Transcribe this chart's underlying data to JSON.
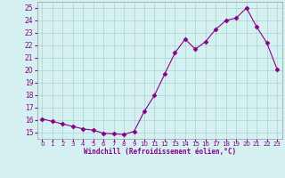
{
  "x": [
    0,
    1,
    2,
    3,
    4,
    5,
    6,
    7,
    8,
    9,
    10,
    11,
    12,
    13,
    14,
    15,
    16,
    17,
    18,
    19,
    20,
    21,
    22,
    23
  ],
  "y": [
    16.1,
    15.9,
    15.7,
    15.5,
    15.3,
    15.2,
    14.95,
    14.9,
    14.85,
    15.1,
    16.7,
    18.0,
    19.7,
    21.4,
    22.5,
    21.7,
    22.3,
    23.3,
    24.0,
    24.2,
    25.0,
    23.5,
    22.2,
    20.1
  ],
  "xlim": [
    -0.5,
    23.5
  ],
  "ylim": [
    14.5,
    25.5
  ],
  "yticks": [
    15,
    16,
    17,
    18,
    19,
    20,
    21,
    22,
    23,
    24,
    25
  ],
  "xtick_labels": [
    "0",
    "1",
    "2",
    "3",
    "4",
    "5",
    "6",
    "7",
    "8",
    "9",
    "10",
    "11",
    "12",
    "13",
    "14",
    "15",
    "16",
    "17",
    "18",
    "19",
    "20",
    "21",
    "22",
    "23"
  ],
  "xlabel": "Windchill (Refroidissement éolien,°C)",
  "line_color": "#880088",
  "marker": "D",
  "marker_size": 2.5,
  "bg_color": "#d4f0f0",
  "grid_color": "#b0d8d8",
  "tick_color": "#880088",
  "label_color": "#880088"
}
